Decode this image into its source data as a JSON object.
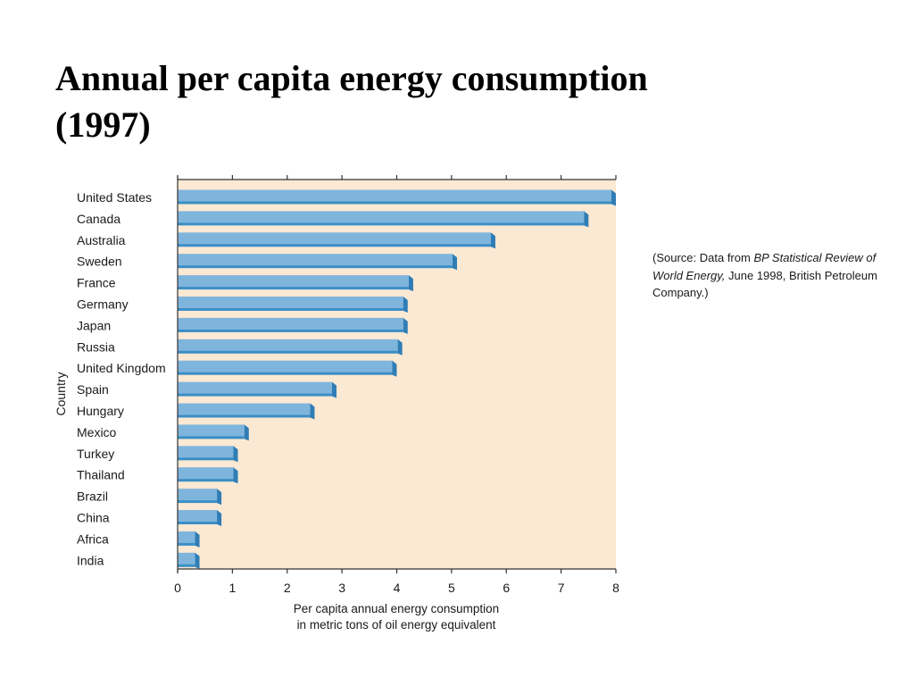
{
  "slide": {
    "title_line1": "Annual per capita energy consumption",
    "title_line2": "(1997)"
  },
  "source_note": {
    "prefix": "(Source: Data from ",
    "italic": "BP Statistical Review of World Energy,",
    "suffix": " June 1998, British Petroleum Company.)"
  },
  "chart_data": {
    "type": "bar",
    "orientation": "horizontal",
    "categories": [
      "United States",
      "Canada",
      "Australia",
      "Sweden",
      "France",
      "Germany",
      "Japan",
      "Russia",
      "United Kingdom",
      "Spain",
      "Hungary",
      "Mexico",
      "Turkey",
      "Thailand",
      "Brazil",
      "China",
      "Africa",
      "India"
    ],
    "values": [
      8.0,
      7.5,
      5.8,
      5.1,
      4.3,
      4.2,
      4.2,
      4.1,
      4.0,
      2.9,
      2.5,
      1.3,
      1.1,
      1.1,
      0.8,
      0.8,
      0.4,
      0.4
    ],
    "xlabel_line1": "Per capita annual energy consumption",
    "xlabel_line2": "in metric tons of oil energy equivalent",
    "ylabel": "Country",
    "xlim": [
      0,
      8
    ],
    "xticks": [
      "0",
      "1",
      "2",
      "3",
      "4",
      "5",
      "6",
      "7",
      "8"
    ],
    "grid": false,
    "colors": {
      "plot_background": "#fce9d3",
      "bar_face": "#7fb5dd",
      "bar_shade": "#3b8fc6",
      "bar_end": "#2f7db5",
      "axis": "#333333"
    }
  }
}
